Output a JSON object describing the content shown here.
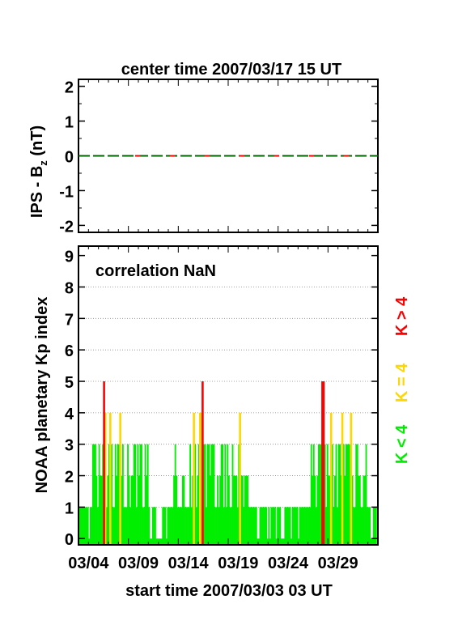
{
  "chart_data": [
    {
      "type": "line",
      "title": "center time 2007/03/17 15 UT",
      "ylabel_main": "IPS - B",
      "ylabel_sub": "z",
      "ylabel_unit": " (nT)",
      "ylim": [
        -2.2,
        2.2
      ],
      "yticks": [
        "2",
        "1",
        "0",
        "-1",
        "-2"
      ],
      "series": [
        {
          "values_constant": 0,
          "color": "#006400",
          "dash_color": "#ff0000"
        }
      ]
    },
    {
      "type": "bar",
      "ylabel": "NOAA planetary Kp index",
      "annotation": "correlation NaN",
      "xlabel": "start time 2007/03/03 03 UT",
      "xticks": [
        "03/04",
        "03/09",
        "03/14",
        "03/19",
        "03/24",
        "03/29"
      ],
      "yticks": [
        "0",
        "1",
        "2",
        "3",
        "4",
        "5",
        "6",
        "7",
        "8",
        "9"
      ],
      "ylim": [
        -0.2,
        9.3
      ],
      "grid": true,
      "x_unit": "days after start",
      "legend": [
        {
          "label": "K < 4",
          "color": "#00ee00"
        },
        {
          "label": "K = 4",
          "color": "#ffd700"
        },
        {
          "label": "K > 4",
          "color": "#ff0000"
        }
      ],
      "kp_3hourly": [
        1,
        1,
        1,
        1,
        1,
        1,
        1,
        1,
        0,
        1,
        1,
        3,
        3,
        3,
        2,
        1,
        3,
        2,
        2,
        3,
        5,
        4,
        1,
        2,
        3,
        4,
        3,
        1,
        1,
        3,
        2,
        3,
        3,
        4,
        2,
        3,
        1,
        1,
        1,
        3,
        2,
        1,
        2,
        2,
        3,
        3,
        1,
        3,
        2,
        3,
        3,
        1,
        1,
        3,
        2,
        3,
        1,
        0,
        0,
        1,
        1,
        1,
        0,
        0,
        0,
        0,
        0,
        1,
        1,
        1,
        0,
        1,
        1,
        1,
        1,
        1,
        2,
        3,
        2,
        1,
        1,
        1,
        1,
        2,
        2,
        1,
        1,
        1,
        1,
        3,
        1,
        2,
        4,
        3,
        1,
        2,
        3,
        4,
        4,
        5,
        3,
        3,
        1,
        3,
        3,
        2,
        3,
        3,
        3,
        1,
        1,
        2,
        1,
        2,
        3,
        3,
        1,
        3,
        1,
        3,
        2,
        1,
        1,
        3,
        2,
        2,
        2,
        1,
        3,
        4,
        2,
        2,
        1,
        2,
        2,
        2,
        1,
        1,
        1,
        1,
        1,
        1,
        1,
        0,
        0,
        1,
        1,
        1,
        1,
        1,
        1,
        0,
        1,
        0,
        1,
        1,
        1,
        1,
        0,
        1,
        1,
        1,
        0,
        0,
        0,
        1,
        1,
        1,
        1,
        1,
        0,
        1,
        1,
        1,
        1,
        1,
        0,
        1,
        1,
        1,
        1,
        1,
        1,
        1,
        1,
        1,
        3,
        2,
        3,
        2,
        1,
        2,
        3,
        3,
        3,
        5,
        5,
        3,
        1,
        3,
        2,
        2,
        4,
        3,
        1,
        2,
        3,
        1,
        3,
        3,
        2,
        4,
        3,
        2,
        3,
        3,
        3,
        3,
        4,
        2,
        1,
        1,
        3,
        3,
        2,
        2,
        1,
        1,
        2,
        2,
        3,
        1,
        1,
        1,
        0,
        0,
        1,
        1,
        1,
        1,
        1,
        1,
        0,
        1,
        2,
        1,
        1,
        1,
        1,
        0,
        1,
        3
      ]
    }
  ]
}
